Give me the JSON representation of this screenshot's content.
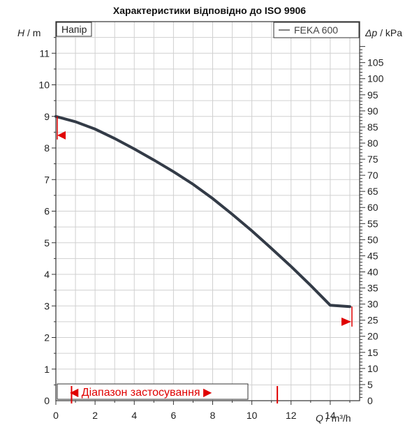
{
  "chart_data": {
    "type": "line",
    "title": "Характеристики відповідно до ISO 9906",
    "panel_label": "Напір",
    "legend": [
      "FEKA 600"
    ],
    "legend_placement": "top-right",
    "left_axis": {
      "var": "H",
      "unit": "m",
      "range": [
        0,
        12
      ],
      "ticks": [
        0,
        1,
        2,
        3,
        4,
        5,
        6,
        7,
        8,
        9,
        10,
        11
      ]
    },
    "right_axis": {
      "var": "Δp",
      "unit": "kPa",
      "ticks": [
        0,
        5,
        10,
        15,
        20,
        25,
        30,
        35,
        40,
        45,
        50,
        55,
        60,
        65,
        70,
        75,
        80,
        85,
        90,
        95,
        100,
        105
      ]
    },
    "x_axis": {
      "var": "Q",
      "unit": "m³/h",
      "range": [
        0,
        15.5
      ],
      "ticks": [
        0,
        2,
        4,
        6,
        8,
        10,
        12,
        14
      ]
    },
    "grid": true,
    "series": [
      {
        "name": "FEKA 600",
        "color": "#333b47",
        "points": [
          [
            0,
            9.0
          ],
          [
            1,
            8.83
          ],
          [
            2,
            8.6
          ],
          [
            3,
            8.3
          ],
          [
            4,
            7.97
          ],
          [
            5,
            7.62
          ],
          [
            6,
            7.25
          ],
          [
            7,
            6.85
          ],
          [
            8,
            6.4
          ],
          [
            9,
            5.9
          ],
          [
            10,
            5.38
          ],
          [
            11,
            4.82
          ],
          [
            12,
            4.25
          ],
          [
            13,
            3.65
          ],
          [
            14,
            3.02
          ],
          [
            15,
            2.98
          ]
        ]
      }
    ],
    "application_range": {
      "label": "Діапазон застосування",
      "q_min": 0.8,
      "q_max": 11.3
    },
    "markers": {
      "min_head": 8.4,
      "max_flow_head": 2.5,
      "max_flow_q": 15.0
    }
  }
}
